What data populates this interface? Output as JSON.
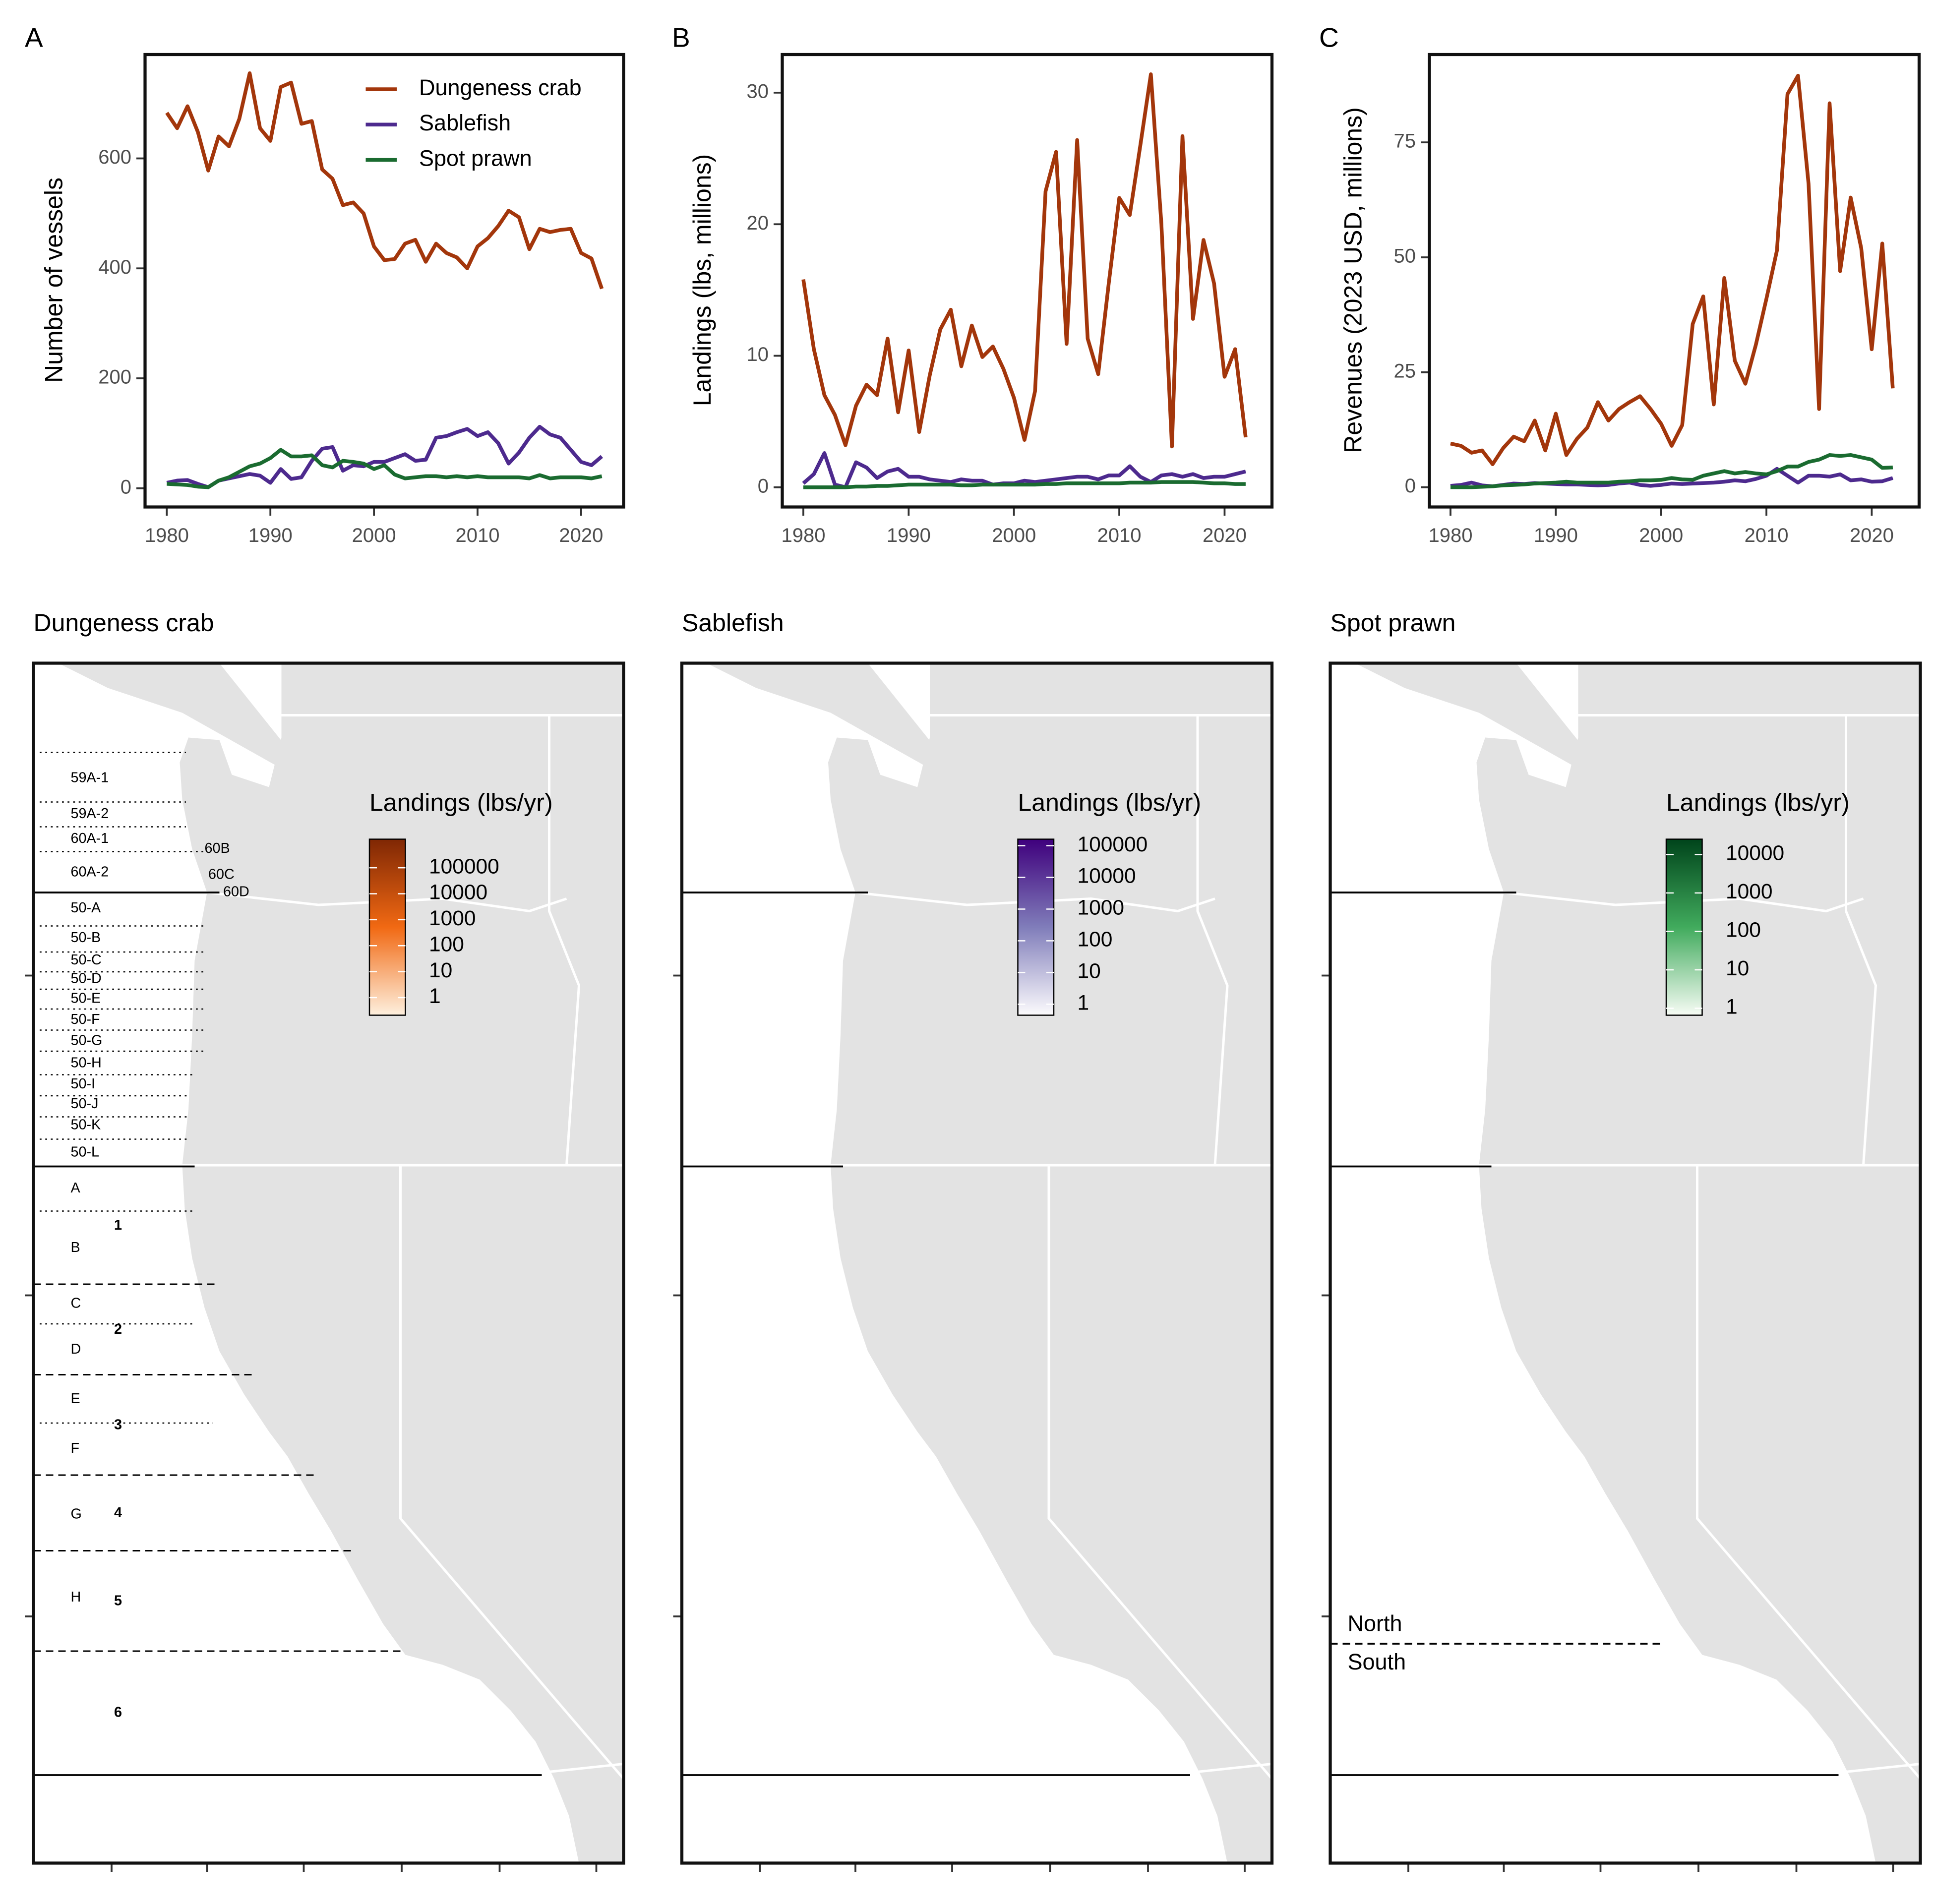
{
  "chart_data": [
    {
      "type": "line",
      "panel_label": "A",
      "y_label": "Number of vessels",
      "x": [
        1980,
        1981,
        1982,
        1983,
        1984,
        1985,
        1986,
        1987,
        1988,
        1989,
        1990,
        1991,
        1992,
        1993,
        1994,
        1995,
        1996,
        1997,
        1998,
        1999,
        2000,
        2001,
        2002,
        2003,
        2004,
        2005,
        2006,
        2007,
        2008,
        2009,
        2010,
        2011,
        2012,
        2013,
        2014,
        2015,
        2016,
        2017,
        2018,
        2019,
        2020,
        2021,
        2022
      ],
      "xlim": [
        1977.9,
        2024.1
      ],
      "xticks": [
        1980,
        1990,
        2000,
        2010,
        2020
      ],
      "ylim": [
        -34,
        789
      ],
      "yticks": [
        0,
        200,
        400,
        600
      ],
      "legend": "top-right",
      "series": [
        {
          "name": "Dungeness crab",
          "color": "#a3360b",
          "values": [
            683,
            655,
            695,
            648,
            578,
            640,
            622,
            672,
            755,
            655,
            632,
            730,
            738,
            663,
            668,
            580,
            563,
            515,
            520,
            500,
            440,
            415,
            417,
            445,
            452,
            412,
            445,
            428,
            420,
            400,
            440,
            455,
            477,
            505,
            493,
            435,
            472,
            466,
            470,
            472,
            428,
            418,
            363
          ]
        },
        {
          "name": "Sablefish",
          "color": "#4d2a8e",
          "values": [
            10,
            14,
            15,
            8,
            2,
            14,
            18,
            22,
            26,
            23,
            10,
            35,
            17,
            20,
            50,
            72,
            75,
            32,
            42,
            40,
            48,
            48,
            55,
            62,
            50,
            52,
            92,
            95,
            102,
            108,
            95,
            102,
            82,
            45,
            65,
            92,
            112,
            98,
            92,
            70,
            48,
            42,
            58
          ]
        },
        {
          "name": "Spot prawn",
          "color": "#1a6b30",
          "values": [
            8,
            7,
            6,
            3,
            2,
            14,
            20,
            30,
            40,
            45,
            55,
            70,
            58,
            58,
            60,
            42,
            38,
            50,
            48,
            45,
            35,
            42,
            25,
            18,
            20,
            22,
            22,
            20,
            22,
            20,
            22,
            20,
            20,
            20,
            20,
            18,
            24,
            18,
            20,
            20,
            20,
            18,
            22
          ]
        }
      ]
    },
    {
      "type": "line",
      "panel_label": "B",
      "y_label": "Landings (lbs, millions)",
      "x": [
        1980,
        1981,
        1982,
        1983,
        1984,
        1985,
        1986,
        1987,
        1988,
        1989,
        1990,
        1991,
        1992,
        1993,
        1994,
        1995,
        1996,
        1997,
        1998,
        1999,
        2000,
        2001,
        2002,
        2003,
        2004,
        2005,
        2006,
        2007,
        2008,
        2009,
        2010,
        2011,
        2012,
        2013,
        2014,
        2015,
        2016,
        2017,
        2018,
        2019,
        2020,
        2021,
        2022
      ],
      "xlim": [
        1978,
        2024.5
      ],
      "xticks": [
        1980,
        1990,
        2000,
        2010,
        2020
      ],
      "ylim": [
        -1.5,
        32.9
      ],
      "yticks": [
        0,
        10,
        20,
        30
      ],
      "series": [
        {
          "color": "#a3360b",
          "values": [
            15.8,
            10.5,
            7,
            5.5,
            3.2,
            6.2,
            7.8,
            7,
            11.3,
            5.7,
            10.4,
            4.2,
            8.5,
            12,
            13.5,
            9.2,
            12.3,
            9.9,
            10.7,
            9,
            6.8,
            3.6,
            7.3,
            22.5,
            25.5,
            10.9,
            26.4,
            11.3,
            8.6,
            15.5,
            22,
            20.7,
            26,
            31.4,
            20,
            3.1,
            26.7,
            12.8,
            18.8,
            15.5,
            8.4,
            10.5,
            3.8
          ]
        },
        {
          "color": "#4d2a8e",
          "values": [
            0.3,
            1,
            2.6,
            0.2,
            0,
            1.9,
            1.5,
            0.7,
            1.2,
            1.4,
            0.8,
            0.8,
            0.6,
            0.5,
            0.4,
            0.6,
            0.5,
            0.5,
            0.2,
            0.3,
            0.3,
            0.5,
            0.4,
            0.5,
            0.6,
            0.7,
            0.8,
            0.8,
            0.6,
            0.9,
            0.9,
            1.6,
            0.8,
            0.4,
            0.9,
            1,
            0.8,
            1,
            0.7,
            0.8,
            0.8,
            1,
            1.2
          ]
        },
        {
          "color": "#1a6b30",
          "values": [
            0,
            0,
            0,
            0,
            0,
            0.05,
            0.05,
            0.1,
            0.1,
            0.15,
            0.2,
            0.2,
            0.2,
            0.2,
            0.2,
            0.15,
            0.15,
            0.2,
            0.2,
            0.2,
            0.2,
            0.2,
            0.2,
            0.25,
            0.25,
            0.3,
            0.3,
            0.3,
            0.3,
            0.3,
            0.3,
            0.35,
            0.35,
            0.35,
            0.4,
            0.4,
            0.4,
            0.4,
            0.35,
            0.3,
            0.3,
            0.25,
            0.25
          ]
        }
      ]
    },
    {
      "type": "line",
      "panel_label": "C",
      "y_label": "Revenues (2023 USD, millions)",
      "x": [
        1980,
        1981,
        1982,
        1983,
        1984,
        1985,
        1986,
        1987,
        1988,
        1989,
        1990,
        1991,
        1992,
        1993,
        1994,
        1995,
        1996,
        1997,
        1998,
        1999,
        2000,
        2001,
        2002,
        2003,
        2004,
        2005,
        2006,
        2007,
        2008,
        2009,
        2010,
        2011,
        2012,
        2013,
        2014,
        2015,
        2016,
        2017,
        2018,
        2019,
        2020,
        2021,
        2022
      ],
      "xlim": [
        1978,
        2024.5
      ],
      "xticks": [
        1980,
        1990,
        2000,
        2010,
        2020
      ],
      "ylim": [
        -4.3,
        94.1
      ],
      "yticks": [
        0,
        25,
        50,
        75
      ],
      "series": [
        {
          "color": "#a3360b",
          "values": [
            9.5,
            9,
            7.5,
            8,
            5,
            8.5,
            11,
            10,
            14.5,
            8,
            16,
            7,
            10.5,
            13,
            18.5,
            14.5,
            17,
            18.5,
            19.8,
            17,
            13.8,
            9,
            13.5,
            35.5,
            41.5,
            18,
            45.5,
            27.5,
            22.5,
            31,
            41,
            51.5,
            85.5,
            89.5,
            66,
            17,
            83.5,
            47,
            63,
            52,
            30,
            53,
            21.5
          ]
        },
        {
          "color": "#4d2a8e",
          "values": [
            0.3,
            0.5,
            1,
            0.4,
            0.2,
            0.5,
            0.8,
            0.7,
            0.9,
            0.8,
            0.7,
            0.6,
            0.6,
            0.5,
            0.4,
            0.5,
            0.8,
            1,
            0.5,
            0.3,
            0.5,
            0.8,
            0.7,
            0.8,
            0.9,
            1,
            1.2,
            1.5,
            1.3,
            1.8,
            2.5,
            4,
            2.5,
            1,
            2.5,
            2.5,
            2.3,
            2.8,
            1.5,
            1.7,
            1.2,
            1.3,
            2
          ]
        },
        {
          "color": "#1a6b30",
          "values": [
            0,
            0,
            0,
            0.1,
            0.2,
            0.4,
            0.5,
            0.6,
            0.8,
            0.9,
            1,
            1.2,
            1,
            1,
            1,
            1,
            1.2,
            1.3,
            1.5,
            1.5,
            1.6,
            2,
            1.7,
            1.6,
            2.5,
            3,
            3.5,
            3,
            3.3,
            3,
            2.8,
            3.5,
            4.5,
            4.5,
            5.5,
            6,
            7,
            6.8,
            7,
            6.5,
            6,
            4.2,
            4.3
          ]
        }
      ]
    },
    {
      "type": "map",
      "title": "Dungeness crab",
      "legend_title": "Landings (lbs/yr)",
      "legend_ticks": [
        1,
        10,
        100,
        1000,
        10000,
        100000
      ],
      "legend_lim": [
        0.21,
        1260000
      ],
      "colors": [
        "#fef0de",
        "#f16913",
        "#7f2704"
      ],
      "labels": [
        "59A-1",
        "59A-2",
        "60A-1",
        "60A-2",
        "60B",
        "60C",
        "60D",
        "50-A",
        "50-B",
        "50-C",
        "50-D",
        "50-E",
        "50-F",
        "50-G",
        "50-H",
        "50-I",
        "50-J",
        "50-K",
        "50-L",
        "A",
        "B",
        "C",
        "D",
        "E",
        "F",
        "G",
        "H",
        "1",
        "2",
        "3",
        "4",
        "5",
        "6"
      ]
    },
    {
      "type": "map",
      "title": "Sablefish",
      "legend_title": "Landings (lbs/yr)",
      "legend_ticks": [
        1,
        10,
        100,
        1000,
        10000,
        100000
      ],
      "legend_lim": [
        0.45,
        160000
      ],
      "colors": [
        "#fcfbfd",
        "#807dba",
        "#3f007d"
      ]
    },
    {
      "type": "map",
      "title": "Spot prawn",
      "legend_title": "Landings (lbs/yr)",
      "legend_ticks": [
        1,
        10,
        100,
        1000,
        10000
      ],
      "legend_lim": [
        0.66,
        25000
      ],
      "colors": [
        "#f7fcf5",
        "#41ab5d",
        "#00441b"
      ],
      "labels": [
        "North",
        "South"
      ]
    }
  ]
}
